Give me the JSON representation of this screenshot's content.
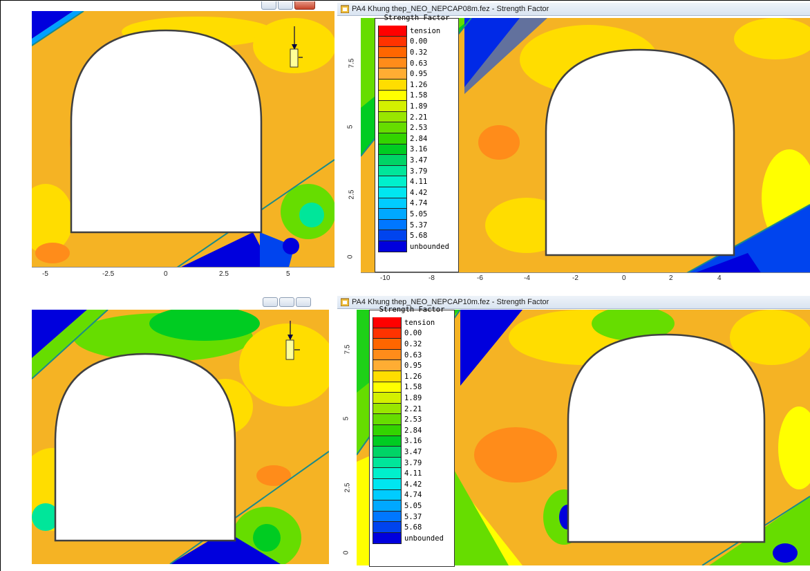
{
  "windows": {
    "top_right_title": "PA4 Khung thep_NEO_NEPCAP08m.fez - Strength Factor",
    "bottom_right_title": "PA4 Khung thep_NEO_NEPCAP10m.fez - Strength Factor"
  },
  "legend": {
    "title": "Strength Factor",
    "entries": [
      {
        "label": "tension",
        "color": "#ff0000"
      },
      {
        "label": "0.00",
        "color": "#ff3300"
      },
      {
        "label": "0.32",
        "color": "#ff6600"
      },
      {
        "label": "0.63",
        "color": "#ff8c1a"
      },
      {
        "label": "0.95",
        "color": "#ffad33"
      },
      {
        "label": "1.26",
        "color": "#ffdd00"
      },
      {
        "label": "1.58",
        "color": "#ffff00"
      },
      {
        "label": "1.89",
        "color": "#d4f000"
      },
      {
        "label": "2.21",
        "color": "#99e600"
      },
      {
        "label": "2.53",
        "color": "#66dd00"
      },
      {
        "label": "2.84",
        "color": "#33d400"
      },
      {
        "label": "3.16",
        "color": "#00cc22"
      },
      {
        "label": "3.47",
        "color": "#00d466"
      },
      {
        "label": "3.79",
        "color": "#00e69a"
      },
      {
        "label": "4.11",
        "color": "#00f0cc"
      },
      {
        "label": "4.42",
        "color": "#00e6f0"
      },
      {
        "label": "4.74",
        "color": "#00ccff"
      },
      {
        "label": "5.05",
        "color": "#00a8ff"
      },
      {
        "label": "5.37",
        "color": "#0077ff"
      },
      {
        "label": "5.68",
        "color": "#0044ee"
      },
      {
        "label": "unbounded",
        "color": "#0000dd"
      }
    ]
  },
  "axes": {
    "top_left_x_ticks": [
      "-5",
      "-2.5",
      "0",
      "2.5",
      "5"
    ],
    "top_right_x_ticks": [
      "-10",
      "-8",
      "-6",
      "-4",
      "-2",
      "0",
      "2",
      "4"
    ],
    "y_ticks_top_right": [
      "7.5",
      "5",
      "2.5",
      "0"
    ],
    "y_ticks_bottom_right": [
      "7.5",
      "5",
      "2.5",
      "0"
    ]
  },
  "icons": {
    "app": "strength-factor-app-icon",
    "support": "load-arrow-icon"
  },
  "colors": {
    "titlebar_text": "#1a1a1a",
    "excavation_boundary": "#404040",
    "joint_line": "#1a8a8a"
  }
}
